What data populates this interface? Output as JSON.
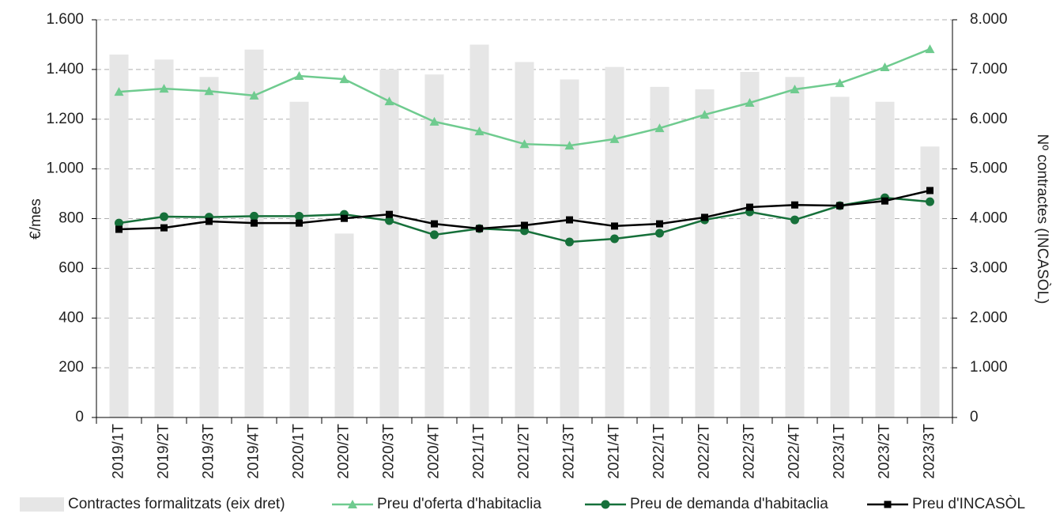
{
  "chart_data": {
    "type": "combo",
    "categories": [
      "2019/1T",
      "2019/2T",
      "2019/3T",
      "2019/4T",
      "2020/1T",
      "2020/2T",
      "2020/3T",
      "2020/4T",
      "2021/1T",
      "2021/2T",
      "2021/3T",
      "2021/4T",
      "2022/1T",
      "2022/2T",
      "2022/3T",
      "2022/4T",
      "2023/1T",
      "2023/2T",
      "2023/3T"
    ],
    "ylabel": "€/mes",
    "y2label": "Nº contractes (INCASÒL)",
    "ylim": [
      0,
      1600
    ],
    "yticks": [
      0,
      200,
      400,
      600,
      800,
      {
        "value": 1000,
        "label": "1.000"
      },
      {
        "value": 1200,
        "label": "1.200"
      },
      {
        "value": 1400,
        "label": "1.400"
      },
      {
        "value": 1600,
        "label": "1.600"
      }
    ],
    "y2lim": [
      0,
      8000
    ],
    "y2ticks": [
      0,
      {
        "value": 1000,
        "label": "1.000"
      },
      {
        "value": 2000,
        "label": "2.000"
      },
      {
        "value": 3000,
        "label": "3.000"
      },
      {
        "value": 4000,
        "label": "4.000"
      },
      {
        "value": 5000,
        "label": "5.000"
      },
      {
        "value": 6000,
        "label": "6.000"
      },
      {
        "value": 7000,
        "label": "7.000"
      },
      {
        "value": 8000,
        "label": "8.000"
      }
    ],
    "grid": true,
    "legend": "bottom",
    "series": [
      {
        "name": "Contractes formalitzats (eix dret)",
        "type": "bar",
        "axis": "y2",
        "color": "#e6e6e6",
        "values": [
          7300,
          7200,
          6850,
          7400,
          6350,
          3700,
          7000,
          6900,
          7500,
          7150,
          6800,
          7050,
          6650,
          6600,
          6950,
          6850,
          6450,
          6350,
          5450
        ]
      },
      {
        "name": "Preu d'oferta d'habitaclia",
        "type": "line",
        "marker": "triangle",
        "color": "#6fcb8f",
        "values": [
          1310,
          1323,
          1313,
          1295,
          1374,
          1361,
          1272,
          1190,
          1151,
          1100,
          1094,
          1120,
          1164,
          1218,
          1266,
          1320,
          1345,
          1409,
          1482
        ]
      },
      {
        "name": "Preu de demanda d'habitaclia",
        "type": "line",
        "marker": "circle",
        "color": "#16703a",
        "values": [
          782,
          808,
          806,
          810,
          810,
          817,
          792,
          735,
          760,
          751,
          706,
          719,
          741,
          795,
          827,
          795,
          852,
          884,
          868
        ]
      },
      {
        "name": "Preu d'INCASÒL",
        "type": "line",
        "marker": "square",
        "color": "#000000",
        "values": [
          757,
          763,
          789,
          782,
          782,
          801,
          817,
          779,
          760,
          773,
          795,
          770,
          779,
          805,
          846,
          855,
          852,
          871,
          913
        ]
      }
    ]
  }
}
